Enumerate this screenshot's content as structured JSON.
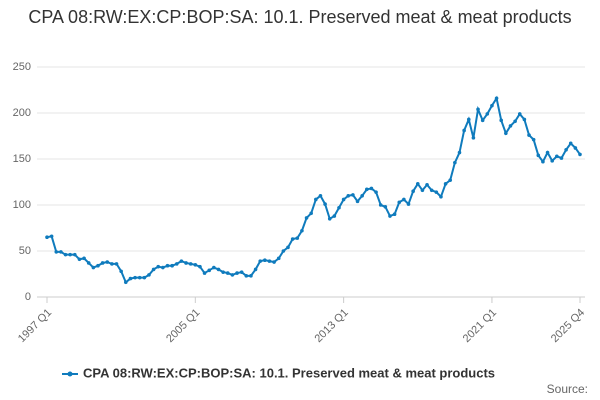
{
  "chart_data": {
    "type": "line",
    "title": "CPA 08:RW:EX:CP:BOP:SA: 10.1. Preserved meat & meat products",
    "categories": [
      "1997 Q1",
      null,
      null,
      null,
      null,
      null,
      null,
      null,
      null,
      null,
      null,
      null,
      null,
      null,
      null,
      null,
      null,
      null,
      null,
      null,
      null,
      null,
      null,
      null,
      null,
      null,
      null,
      null,
      null,
      null,
      null,
      null,
      "2005 Q1",
      null,
      null,
      null,
      null,
      null,
      null,
      null,
      null,
      null,
      null,
      null,
      null,
      null,
      null,
      null,
      null,
      null,
      null,
      null,
      null,
      null,
      null,
      null,
      null,
      null,
      null,
      null,
      null,
      null,
      null,
      null,
      "2013 Q1",
      null,
      null,
      null,
      null,
      null,
      null,
      null,
      null,
      null,
      null,
      null,
      null,
      null,
      null,
      null,
      null,
      null,
      null,
      null,
      null,
      null,
      null,
      null,
      null,
      null,
      null,
      null,
      null,
      null,
      null,
      null,
      "2021 Q1",
      null,
      null,
      null,
      null,
      null,
      null,
      null,
      null,
      null,
      null,
      null,
      null,
      null,
      null,
      null,
      null,
      null,
      null,
      "2025 Q4"
    ],
    "series": [
      {
        "name": "CPA 08:RW:EX:CP:BOP:SA: 10.1. Preserved meat & meat products",
        "color": "#0f7bbd",
        "values": [
          65,
          66,
          49,
          49,
          46,
          46,
          46,
          41,
          42,
          37,
          32,
          34,
          37,
          38,
          36,
          36,
          28,
          16,
          20,
          21,
          21,
          21,
          24,
          30,
          33,
          32,
          34,
          34,
          36,
          39,
          37,
          36,
          35,
          33,
          26,
          29,
          32,
          30,
          27,
          26,
          24,
          26,
          27,
          23,
          23,
          30,
          39,
          40,
          39,
          38,
          42,
          50,
          54,
          63,
          64,
          72,
          86,
          91,
          106,
          110,
          101,
          85,
          88,
          97,
          106,
          110,
          111,
          104,
          110,
          117,
          118,
          114,
          100,
          98,
          88,
          90,
          103,
          106,
          101,
          115,
          123,
          116,
          122,
          116,
          114,
          109,
          123,
          127,
          146,
          157,
          181,
          193,
          173,
          204,
          192,
          199,
          208,
          216,
          192,
          178,
          186,
          191,
          199,
          193,
          176,
          171,
          154,
          147,
          157,
          148,
          153,
          151,
          160,
          167,
          162,
          155
        ]
      }
    ],
    "ylim": [
      0,
      250
    ],
    "yticks": [
      0,
      50,
      100,
      150,
      200,
      250
    ],
    "grid": true,
    "source": "Source:"
  }
}
